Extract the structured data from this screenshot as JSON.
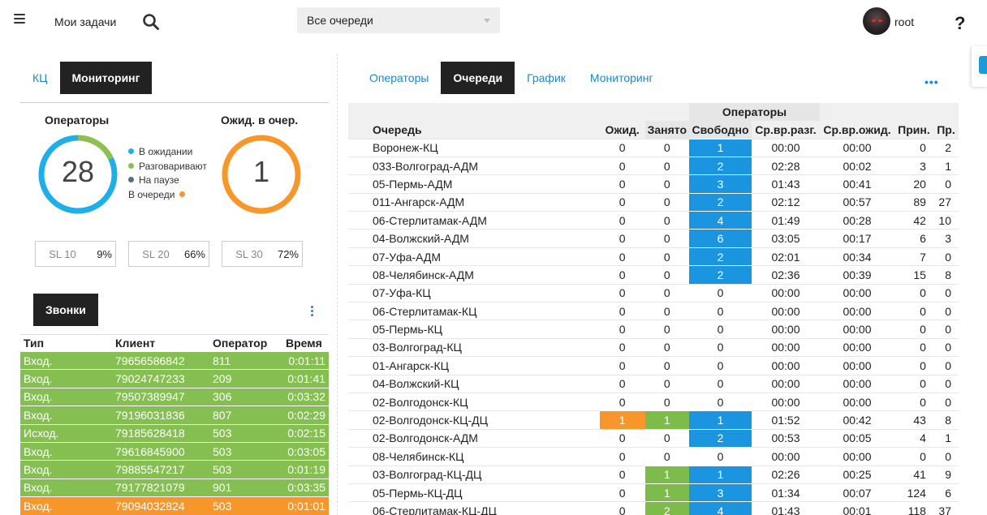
{
  "header": {
    "my_tasks": "Мои задачи",
    "queue_select": "Все очереди",
    "username": "root",
    "help": "?"
  },
  "left": {
    "tabs": [
      {
        "label": "КЦ",
        "active": false
      },
      {
        "label": "Мониторинг",
        "active": true
      }
    ],
    "operators": {
      "title": "Операторы",
      "count": "28",
      "segments": [
        {
          "legend": "В ожидании",
          "color": "#1eaee8",
          "value": 23
        },
        {
          "legend": "Разговаривают",
          "color": "#8cc152",
          "value": 5
        },
        {
          "legend": "На паузе",
          "color": "#546e7a",
          "value": 0
        }
      ],
      "queue_legend": "В очереди",
      "queue_color": "#f7962a"
    },
    "waiting": {
      "title": "Ожид. в очер.",
      "count": "1",
      "color": "#f7962a"
    },
    "sl": [
      {
        "label": "SL 10",
        "value": "9%"
      },
      {
        "label": "SL 20",
        "value": "66%"
      },
      {
        "label": "SL 30",
        "value": "72%"
      }
    ],
    "calls_button": "Звонки",
    "calls": {
      "columns": [
        "Тип",
        "Клиент",
        "Оператор",
        "Время"
      ],
      "rows": [
        {
          "type": "Вход.",
          "client": "79656586842",
          "operator": "811",
          "time": "0:01:11",
          "color": "#86bf51"
        },
        {
          "type": "Вход.",
          "client": "79024747233",
          "operator": "209",
          "time": "0:01:41",
          "color": "#86bf51"
        },
        {
          "type": "Вход.",
          "client": "79507389947",
          "operator": "306",
          "time": "0:03:32",
          "color": "#86bf51"
        },
        {
          "type": "Вход.",
          "client": "79196031836",
          "operator": "807",
          "time": "0:02:29",
          "color": "#86bf51"
        },
        {
          "type": "Исход.",
          "client": "79185628418",
          "operator": "503",
          "time": "0:02:15",
          "color": "#86bf51"
        },
        {
          "type": "Вход.",
          "client": "79616845900",
          "operator": "503",
          "time": "0:03:05",
          "color": "#86bf51"
        },
        {
          "type": "Вход.",
          "client": "79885547217",
          "operator": "503",
          "time": "0:01:19",
          "color": "#86bf51"
        },
        {
          "type": "Вход.",
          "client": "79177821079",
          "operator": "901",
          "time": "0:03:35",
          "color": "#86bf51"
        },
        {
          "type": "Вход.",
          "client": "79094032824",
          "operator": "503",
          "time": "0:01:01",
          "color": "#f7962a"
        }
      ]
    }
  },
  "right": {
    "tabs": [
      {
        "label": "Операторы",
        "active": false
      },
      {
        "label": "Очереди",
        "active": true
      },
      {
        "label": "График",
        "active": false
      },
      {
        "label": "Мониторинг",
        "active": false
      }
    ],
    "more": "•••",
    "table": {
      "group_header": "Операторы",
      "columns": [
        "Очередь",
        "Ожид.",
        "Занято",
        "Свободно",
        "Ср.вр.разг.",
        "Ср.вр.ожид.",
        "Прин.",
        "Пр."
      ],
      "rows": [
        [
          "Воронеж-КЦ",
          "0",
          "0",
          "1",
          "00:00",
          "00:00",
          "0",
          "2"
        ],
        [
          "033-Волгоград-АДМ",
          "0",
          "0",
          "2",
          "02:28",
          "00:02",
          "3",
          "1"
        ],
        [
          "05-Пермь-АДМ",
          "0",
          "0",
          "3",
          "01:43",
          "00:41",
          "20",
          "0"
        ],
        [
          "011-Ангарск-АДМ",
          "0",
          "0",
          "2",
          "02:12",
          "00:57",
          "89",
          "27"
        ],
        [
          "06-Стерлитамак-АДМ",
          "0",
          "0",
          "4",
          "01:49",
          "00:28",
          "42",
          "10"
        ],
        [
          "04-Волжский-АДМ",
          "0",
          "0",
          "6",
          "03:05",
          "00:17",
          "6",
          "3"
        ],
        [
          "07-Уфа-АДМ",
          "0",
          "0",
          "2",
          "02:01",
          "00:34",
          "7",
          "0"
        ],
        [
          "08-Челябинск-АДМ",
          "0",
          "0",
          "2",
          "02:36",
          "00:39",
          "15",
          "8"
        ],
        [
          "07-Уфа-КЦ",
          "0",
          "0",
          "0",
          "00:00",
          "00:00",
          "0",
          "0"
        ],
        [
          "06-Стерлитамак-КЦ",
          "0",
          "0",
          "0",
          "00:00",
          "00:00",
          "0",
          "0"
        ],
        [
          "05-Пермь-КЦ",
          "0",
          "0",
          "0",
          "00:00",
          "00:00",
          "0",
          "0"
        ],
        [
          "03-Волгоград-КЦ",
          "0",
          "0",
          "0",
          "00:00",
          "00:00",
          "0",
          "0"
        ],
        [
          "01-Ангарск-КЦ",
          "0",
          "0",
          "0",
          "00:00",
          "00:00",
          "0",
          "0"
        ],
        [
          "04-Волжский-КЦ",
          "0",
          "0",
          "0",
          "00:00",
          "00:00",
          "0",
          "0"
        ],
        [
          "02-Волгодонск-КЦ",
          "0",
          "0",
          "0",
          "00:00",
          "00:00",
          "0",
          "0"
        ],
        [
          "02-Волгодонск-КЦ-ДЦ",
          "1",
          "1",
          "1",
          "01:52",
          "00:42",
          "43",
          "8"
        ],
        [
          "02-Волгодонск-АДМ",
          "0",
          "0",
          "2",
          "00:53",
          "00:05",
          "4",
          "1"
        ],
        [
          "08-Челябинск-КЦ",
          "0",
          "0",
          "0",
          "00:00",
          "00:00",
          "0",
          "0"
        ],
        [
          "03-Волгоград-КЦ-ДЦ",
          "0",
          "1",
          "1",
          "02:26",
          "00:25",
          "41",
          "9"
        ],
        [
          "05-Пермь-КЦ-ДЦ",
          "0",
          "1",
          "3",
          "01:34",
          "00:07",
          "124",
          "6"
        ],
        [
          "06-Стерлитамак-КЦ-ДЦ",
          "0",
          "2",
          "4",
          "01:43",
          "00:01",
          "118",
          "37"
        ]
      ]
    }
  }
}
